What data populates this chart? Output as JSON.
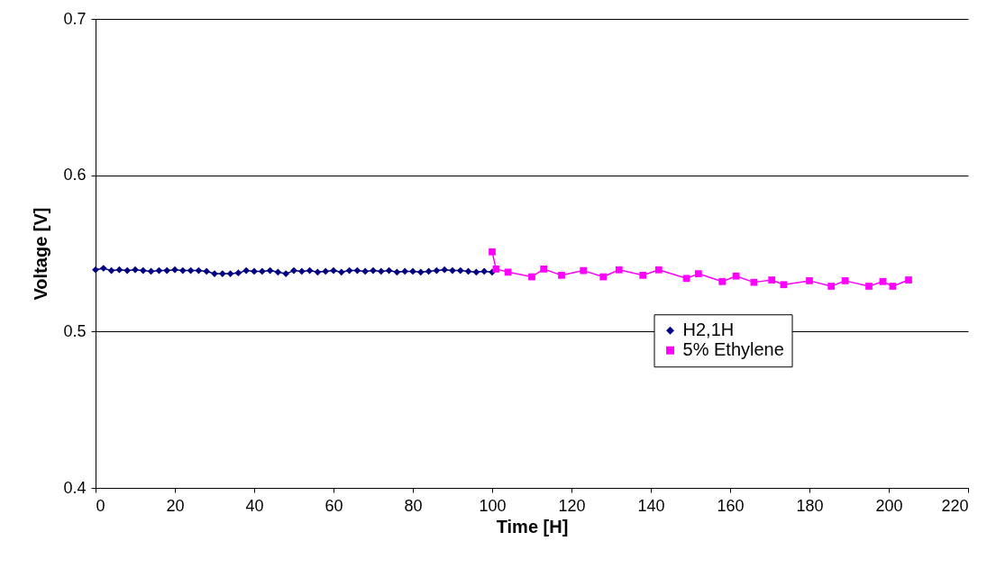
{
  "chart_data": {
    "type": "line",
    "xlabel": "Time [H]",
    "ylabel": "Voltage [V]",
    "xlim": [
      0,
      220
    ],
    "xticks": [
      0,
      20,
      40,
      60,
      80,
      100,
      120,
      140,
      160,
      180,
      200,
      220
    ],
    "ylim": [
      0.4,
      0.7
    ],
    "yticks": [
      0.4,
      0.5,
      0.6,
      0.7
    ],
    "grid": "y",
    "legend": "right",
    "series": [
      {
        "name": "H2,1H",
        "color": "#000080",
        "marker": "diamond",
        "x": [
          0,
          2,
          4,
          6,
          8,
          10,
          12,
          14,
          16,
          18,
          20,
          22,
          24,
          26,
          28,
          30,
          32,
          34,
          36,
          38,
          40,
          42,
          44,
          46,
          48,
          50,
          52,
          54,
          56,
          58,
          60,
          62,
          64,
          66,
          68,
          70,
          72,
          74,
          76,
          78,
          80,
          82,
          84,
          86,
          88,
          90,
          92,
          94,
          96,
          98,
          100
        ],
        "values": [
          0.5395,
          0.5405,
          0.539,
          0.5395,
          0.539,
          0.5395,
          0.539,
          0.5385,
          0.539,
          0.539,
          0.5395,
          0.539,
          0.539,
          0.539,
          0.5385,
          0.537,
          0.537,
          0.537,
          0.5375,
          0.539,
          0.5385,
          0.5385,
          0.539,
          0.538,
          0.537,
          0.539,
          0.5385,
          0.539,
          0.538,
          0.5385,
          0.539,
          0.538,
          0.539,
          0.539,
          0.5385,
          0.539,
          0.5385,
          0.539,
          0.538,
          0.5385,
          0.5385,
          0.538,
          0.5385,
          0.539,
          0.5395,
          0.539,
          0.539,
          0.5385,
          0.538,
          0.5385,
          0.538
        ]
      },
      {
        "name": "5% Ethylene",
        "color": "#ff00ff",
        "marker": "square",
        "x": [
          100,
          101,
          104,
          110,
          113,
          117.5,
          123,
          128,
          132,
          138,
          142,
          149,
          152,
          158,
          161.5,
          166,
          170.5,
          173.5,
          180,
          185.5,
          189,
          195,
          198.5,
          201,
          205
        ],
        "values": [
          0.551,
          0.54,
          0.538,
          0.535,
          0.54,
          0.536,
          0.539,
          0.535,
          0.5395,
          0.536,
          0.5395,
          0.534,
          0.537,
          0.532,
          0.5355,
          0.5315,
          0.533,
          0.53,
          0.5325,
          0.529,
          0.5325,
          0.529,
          0.532,
          0.529,
          0.533
        ]
      }
    ]
  }
}
